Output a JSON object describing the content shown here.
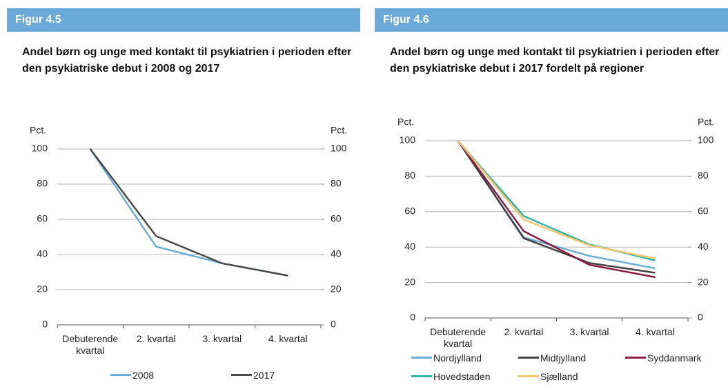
{
  "chart_data": [
    {
      "type": "line",
      "figure_label": "Figur 4.5",
      "title": "Andel børn og unge med kontakt til psykiatrien i perioden efter den psykiatriske debut i 2008 og 2017",
      "ylabel": "Pct.",
      "y2label": "Pct.",
      "categories": [
        "Debuterende kvartal",
        "2. kvartal",
        "3. kvartal",
        "4. kvartal"
      ],
      "series": [
        {
          "name": "2008",
          "color": "#6aaed6",
          "values": [
            100,
            44.5,
            35,
            28
          ]
        },
        {
          "name": "2017",
          "color": "#4a4a4a",
          "values": [
            100,
            50.5,
            35,
            28
          ]
        }
      ],
      "ylim": [
        0,
        100
      ],
      "yticks": [
        0,
        20,
        40,
        60,
        80,
        100
      ],
      "y2lim": [
        0,
        100
      ],
      "y2ticks": [
        0,
        20,
        40,
        60,
        80,
        100
      ],
      "grid": true,
      "legend": "bottom"
    },
    {
      "type": "line",
      "figure_label": "Figur 4.6",
      "title": "Andel børn og unge med kontakt til psykiatrien i perioden efter den psykiatriske debut i 2017 fordelt på regioner",
      "ylabel": "Pct.",
      "y2label": "Pct.",
      "categories": [
        "Debuterende kvartal",
        "2. kvartal",
        "3. kvartal",
        "4. kvartal"
      ],
      "series": [
        {
          "name": "Nordjylland",
          "color": "#6aaed6",
          "values": [
            100,
            45.5,
            35,
            28
          ]
        },
        {
          "name": "Midtjylland",
          "color": "#404040",
          "values": [
            100,
            45,
            31,
            25.5
          ]
        },
        {
          "name": "Syddanmark",
          "color": "#8b1a3e",
          "values": [
            100,
            49,
            30,
            23
          ]
        },
        {
          "name": "Hovedstaden",
          "color": "#2ab3a6",
          "values": [
            100,
            57.5,
            41.5,
            32.5
          ]
        },
        {
          "name": "Sjælland",
          "color": "#f5c56b",
          "values": [
            100,
            55.5,
            41,
            33.5
          ]
        }
      ],
      "ylim": [
        0,
        100
      ],
      "yticks": [
        0,
        20,
        40,
        60,
        80,
        100
      ],
      "y2lim": [
        0,
        100
      ],
      "y2ticks": [
        0,
        20,
        40,
        60,
        80,
        100
      ],
      "grid": true,
      "legend": "bottom"
    }
  ]
}
